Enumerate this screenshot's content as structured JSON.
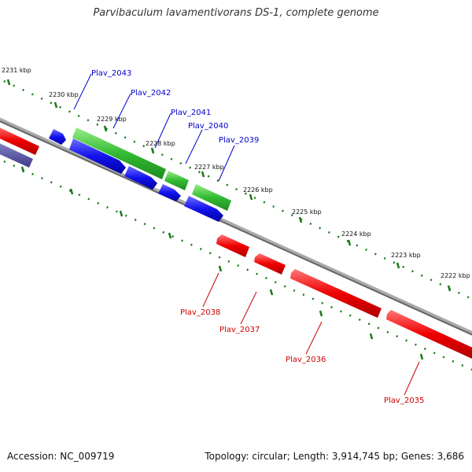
{
  "title": "Parvibaculum lavamentivorans DS-1, complete genome",
  "footer": {
    "accession": "Accession: NC_009719",
    "summary": "Topology: circular; Length: 3,914,745 bp; Genes: 3,686"
  },
  "ticks": [
    "2231 kbp",
    "2230 kbp",
    "2229 kbp",
    "2228 kbp",
    "2227 kbp",
    "2226 kbp",
    "2225 kbp",
    "2224 kbp",
    "2223 kbp",
    "2222 kbp"
  ],
  "genes_top": [
    "Plav_2043",
    "Plav_2042",
    "Plav_2041",
    "Plav_2040",
    "Plav_2039"
  ],
  "genes_bottom": [
    "Plav_2038",
    "Plav_2037",
    "Plav_2036",
    "Plav_2035"
  ],
  "colors": {
    "forward_label": "#0000cc",
    "reverse_label": "#cc0000",
    "cds_forward": "#0000ee",
    "gene_green": "#33bb33",
    "cds_reverse": "#ee0000",
    "tick": "#1a7a1a",
    "backbone": "#888888"
  }
}
